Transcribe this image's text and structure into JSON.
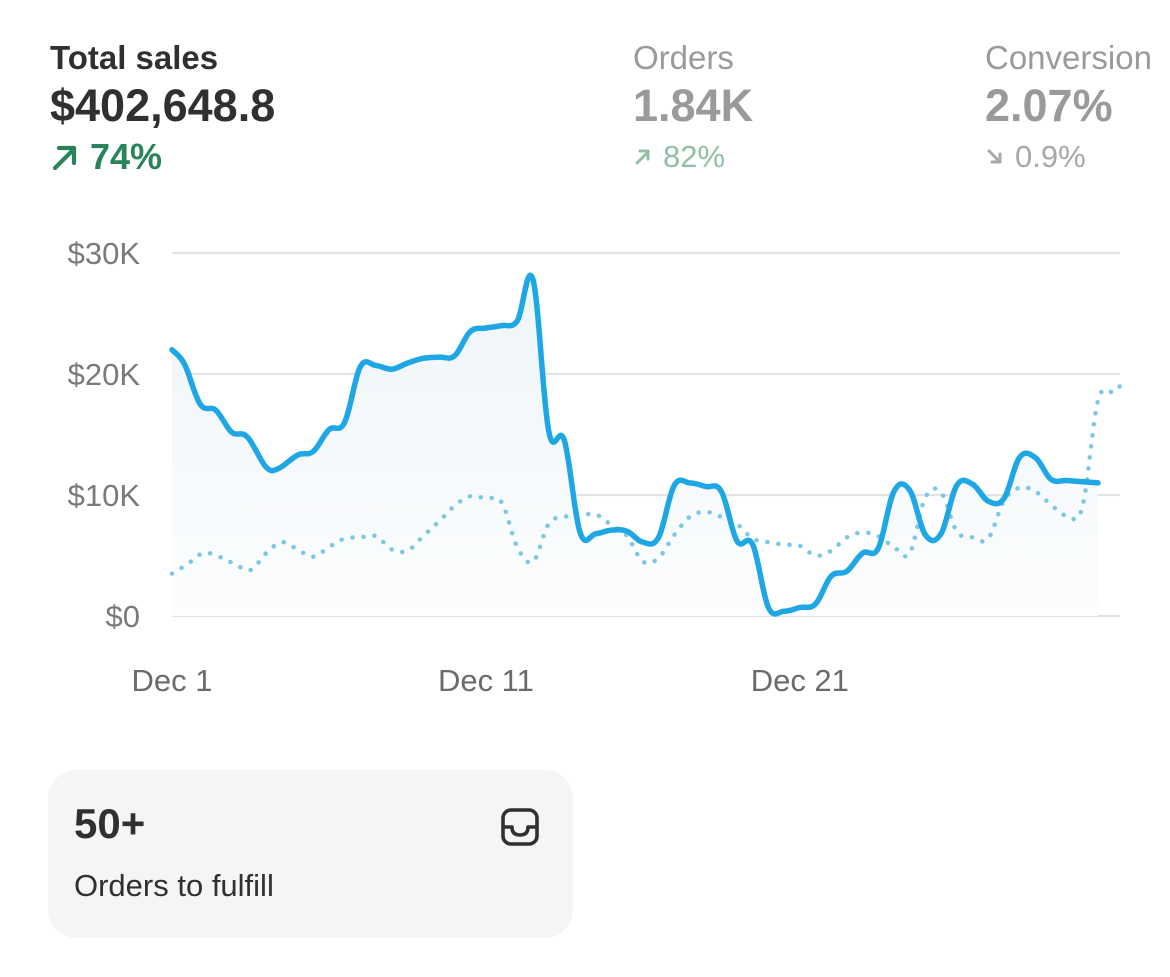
{
  "metrics": {
    "total_sales": {
      "label": "Total sales",
      "value": "$402,648.8",
      "change": "74%",
      "direction": "up"
    },
    "orders": {
      "label": "Orders",
      "value": "1.84K",
      "change": "82%",
      "direction": "up"
    },
    "conversion": {
      "label": "Conversion",
      "value": "2.07%",
      "change": "0.9%",
      "direction": "down"
    }
  },
  "chart_data": {
    "type": "line",
    "title": "",
    "xlabel": "",
    "ylabel": "",
    "ylim": [
      0,
      30000
    ],
    "y_ticks": [
      {
        "label": "$0",
        "value": 0
      },
      {
        "label": "$10K",
        "value": 10000
      },
      {
        "label": "$20K",
        "value": 20000
      },
      {
        "label": "$30K",
        "value": 30000
      }
    ],
    "x_ticks": [
      {
        "label": "Dec 1",
        "day": 1
      },
      {
        "label": "Dec 11",
        "day": 11
      },
      {
        "label": "Dec 21",
        "day": 21
      }
    ],
    "grid": true,
    "series": [
      {
        "style": "solid",
        "color": "#1ea7e4",
        "points": [
          [
            1,
            22000
          ],
          [
            1.4,
            20800
          ],
          [
            1.9,
            17500
          ],
          [
            2.4,
            17000
          ],
          [
            2.9,
            15200
          ],
          [
            3.4,
            14800
          ],
          [
            4,
            12300
          ],
          [
            4.4,
            12200
          ],
          [
            5,
            13300
          ],
          [
            5.5,
            13600
          ],
          [
            6,
            15400
          ],
          [
            6.5,
            16000
          ],
          [
            7,
            20600
          ],
          [
            7.5,
            20700
          ],
          [
            8,
            20400
          ],
          [
            8.5,
            20900
          ],
          [
            9,
            21300
          ],
          [
            9.5,
            21400
          ],
          [
            10,
            21500
          ],
          [
            10.5,
            23500
          ],
          [
            11,
            23800
          ],
          [
            11.5,
            24000
          ],
          [
            12,
            24400
          ],
          [
            12.5,
            27800
          ],
          [
            13,
            15300
          ],
          [
            13.5,
            14500
          ],
          [
            14,
            6900
          ],
          [
            14.5,
            6800
          ],
          [
            15,
            7100
          ],
          [
            15.5,
            7000
          ],
          [
            16,
            6100
          ],
          [
            16.5,
            6500
          ],
          [
            17,
            10800
          ],
          [
            17.5,
            11000
          ],
          [
            18,
            10700
          ],
          [
            18.5,
            10300
          ],
          [
            19,
            6200
          ],
          [
            19.5,
            5900
          ],
          [
            20,
            700
          ],
          [
            20.5,
            400
          ],
          [
            21,
            700
          ],
          [
            21.5,
            1000
          ],
          [
            22,
            3300
          ],
          [
            22.5,
            3700
          ],
          [
            23,
            5200
          ],
          [
            23.5,
            5600
          ],
          [
            24,
            10300
          ],
          [
            24.5,
            10400
          ],
          [
            25,
            6700
          ],
          [
            25.5,
            6800
          ],
          [
            26,
            10800
          ],
          [
            26.5,
            10900
          ],
          [
            27,
            9500
          ],
          [
            27.5,
            9700
          ],
          [
            28,
            13100
          ],
          [
            28.5,
            13100
          ],
          [
            29,
            11300
          ],
          [
            29.5,
            11200
          ],
          [
            30,
            11100
          ],
          [
            30.5,
            11000
          ]
        ]
      },
      {
        "style": "dotted",
        "color": "#7cc7e3",
        "points": [
          [
            1,
            3500
          ],
          [
            1.5,
            4300
          ],
          [
            2,
            5200
          ],
          [
            2.5,
            4900
          ],
          [
            3,
            4300
          ],
          [
            3.5,
            3800
          ],
          [
            4,
            5200
          ],
          [
            4.5,
            6100
          ],
          [
            5,
            5500
          ],
          [
            5.5,
            4900
          ],
          [
            6,
            5700
          ],
          [
            6.5,
            6400
          ],
          [
            7,
            6500
          ],
          [
            7.5,
            6600
          ],
          [
            8,
            5500
          ],
          [
            8.5,
            5400
          ],
          [
            9,
            6600
          ],
          [
            9.5,
            7800
          ],
          [
            10,
            9100
          ],
          [
            10.5,
            9900
          ],
          [
            11,
            9700
          ],
          [
            11.5,
            9400
          ],
          [
            12,
            5700
          ],
          [
            12.5,
            4500
          ],
          [
            13,
            7600
          ],
          [
            13.5,
            8200
          ],
          [
            14,
            8300
          ],
          [
            14.5,
            8400
          ],
          [
            15,
            7500
          ],
          [
            15.5,
            6600
          ],
          [
            16,
            4500
          ],
          [
            16.5,
            4800
          ],
          [
            17,
            6700
          ],
          [
            17.5,
            8200
          ],
          [
            18,
            8600
          ],
          [
            18.5,
            8200
          ],
          [
            19,
            7600
          ],
          [
            19.5,
            6400
          ],
          [
            20,
            6100
          ],
          [
            20.5,
            5900
          ],
          [
            21,
            5800
          ],
          [
            21.5,
            5000
          ],
          [
            22,
            5400
          ],
          [
            22.5,
            6500
          ],
          [
            23,
            6900
          ],
          [
            23.5,
            6600
          ],
          [
            24,
            5700
          ],
          [
            24.5,
            5200
          ],
          [
            25,
            9800
          ],
          [
            25.5,
            10200
          ],
          [
            26,
            7000
          ],
          [
            26.5,
            6500
          ],
          [
            27,
            6400
          ],
          [
            27.5,
            9500
          ],
          [
            28,
            10600
          ],
          [
            28.5,
            10300
          ],
          [
            29,
            9200
          ],
          [
            29.5,
            8300
          ],
          [
            30,
            9000
          ],
          [
            30.5,
            17800
          ],
          [
            31,
            18500
          ],
          [
            31.2,
            19000
          ]
        ]
      }
    ]
  },
  "fulfill_card": {
    "count": "50+",
    "label": "Orders to fulfill",
    "icon": "inbox-icon"
  },
  "colors": {
    "accent_line": "#1ea7e4",
    "comparison_line": "#7cc7e3",
    "positive": "#29845a",
    "muted_positive": "#8ec0a6",
    "muted": "#9a9a9a",
    "gridline": "#e3e3e3"
  }
}
